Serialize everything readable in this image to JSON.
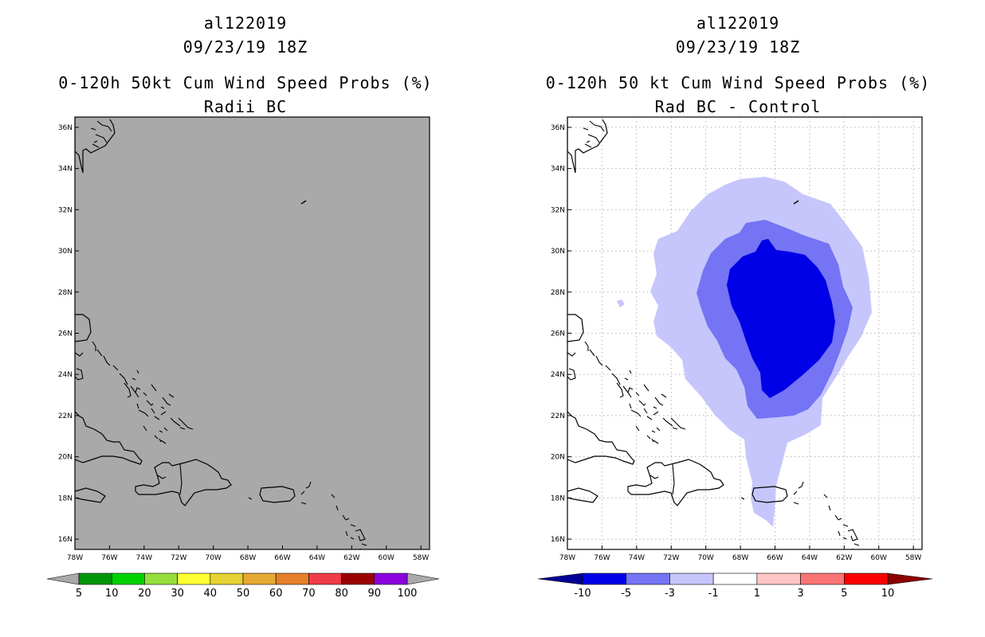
{
  "left_panel": {
    "storm_id": "al122019",
    "datetime": "09/23/19 18Z",
    "product": "0-120h 50kt Cum Wind Speed Probs (%)",
    "subtitle": "Radii BC",
    "background": "#a9a9a9",
    "colorbar": {
      "colors": [
        "#00960a",
        "#00d200",
        "#96de3c",
        "#ffff34",
        "#e6d232",
        "#e6a932",
        "#e6802a",
        "#f03c46",
        "#9a0000",
        "#8b00dc"
      ],
      "end_colors": [
        "#aaaaaa",
        "#aaaaaa"
      ],
      "labels": [
        "5",
        "10",
        "20",
        "30",
        "40",
        "50",
        "60",
        "70",
        "80",
        "90",
        "100"
      ]
    }
  },
  "right_panel": {
    "storm_id": "al122019",
    "datetime": "09/23/19 18Z",
    "product": "0-120h 50 kt Cum Wind Speed Probs (%)",
    "subtitle": "Rad BC - Control",
    "background": "#ffffff",
    "fill_colors": {
      "light": "#c6c6fc",
      "medium": "#7474f4",
      "dark": "#0000e6"
    },
    "colorbar": {
      "colors": [
        "#0000e6",
        "#7474f4",
        "#c6c6fc",
        "#ffffff",
        "#ffc6c6",
        "#fa7474",
        "#fa0000"
      ],
      "end_colors": [
        "#000096",
        "#8c0000"
      ],
      "labels": [
        "-10",
        "-5",
        "-3",
        "-1",
        "1",
        "3",
        "5",
        "10"
      ]
    }
  },
  "axes": {
    "lon_labels": [
      "78W",
      "76W",
      "74W",
      "72W",
      "70W",
      "68W",
      "66W",
      "64W",
      "62W",
      "60W",
      "58W"
    ],
    "lat_labels": [
      "36N",
      "34N",
      "32N",
      "30N",
      "28N",
      "26N",
      "24N",
      "22N",
      "20N",
      "18N",
      "16N"
    ],
    "lon_range": [
      -78,
      -57.5
    ],
    "lat_range": [
      15.5,
      36.5
    ]
  }
}
